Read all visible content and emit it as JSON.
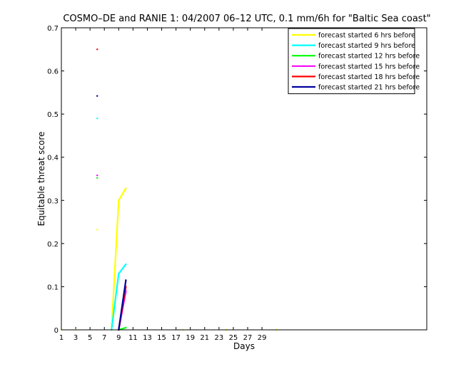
{
  "chart_data": {
    "type": "line",
    "title": "COSMO–DE and RANIE 1: 04/2007 06–12 UTC, 0.1 mm/6h for \"Baltic Sea coast\"",
    "xlabel": "Days",
    "ylabel": "Equitable threat score",
    "xlim": [
      1,
      52
    ],
    "ylim": [
      0,
      0.7
    ],
    "xticks": [
      1,
      3,
      5,
      7,
      9,
      11,
      13,
      15,
      17,
      19,
      21,
      23,
      25,
      27,
      29
    ],
    "xtick_labels": [
      "1",
      "3",
      "5",
      "7",
      "9",
      "11",
      "13",
      "15",
      "17",
      "19",
      "21",
      "23",
      "25",
      "27",
      "29"
    ],
    "yticks": [
      0,
      0.1,
      0.2,
      0.3,
      0.4,
      0.5,
      0.6,
      0.7
    ],
    "ytick_labels": [
      "0",
      "0.1",
      "0.2",
      "0.3",
      "0.4",
      "0.5",
      "0.6",
      "0.7"
    ],
    "legend_position": "top-right",
    "series": [
      {
        "name": "forecast started 6 hrs before",
        "color": "#ffff00",
        "points": [
          [
            1,
            0
          ],
          [
            3,
            0
          ],
          [
            6,
            0.232
          ],
          [
            8,
            0
          ],
          [
            9,
            0.3
          ],
          [
            10,
            0.328
          ],
          [
            18,
            0
          ],
          [
            24,
            0
          ],
          [
            31,
            0
          ]
        ],
        "segments": [
          [
            [
              8,
              0
            ],
            [
              9,
              0.3
            ],
            [
              10,
              0.328
            ]
          ]
        ]
      },
      {
        "name": "forecast started 9 hrs before",
        "color": "#00ffff",
        "points": [
          [
            6,
            0.49
          ],
          [
            8,
            0
          ],
          [
            9,
            0.13
          ],
          [
            10,
            0.152
          ]
        ],
        "segments": [
          [
            [
              8,
              0
            ],
            [
              9,
              0.13
            ],
            [
              10,
              0.152
            ]
          ]
        ]
      },
      {
        "name": "forecast started 12 hrs before",
        "color": "#00ff00",
        "points": [
          [
            6,
            0.352
          ],
          [
            9,
            0
          ],
          [
            10,
            0.005
          ]
        ],
        "segments": [
          [
            [
              9,
              0
            ],
            [
              10,
              0.005
            ]
          ]
        ]
      },
      {
        "name": "forecast started 15 hrs before",
        "color": "#ff00ff",
        "points": [
          [
            6,
            0.358
          ],
          [
            9,
            0
          ],
          [
            10,
            0.09
          ]
        ],
        "segments": [
          [
            [
              9,
              0
            ],
            [
              10,
              0.09
            ]
          ]
        ]
      },
      {
        "name": "forecast started 18 hrs before",
        "color": "#ff0000",
        "points": [
          [
            6,
            0.65
          ],
          [
            9,
            0
          ],
          [
            10,
            0.1
          ]
        ],
        "segments": [
          [
            [
              9,
              0
            ],
            [
              10,
              0.1
            ]
          ]
        ]
      },
      {
        "name": "forecast started 21 hrs before",
        "color": "#0000a0",
        "points": [
          [
            6,
            0.542
          ],
          [
            9,
            0
          ],
          [
            10,
            0.115
          ]
        ],
        "segments": [
          [
            [
              9,
              0
            ],
            [
              10,
              0.115
            ]
          ]
        ]
      }
    ]
  }
}
